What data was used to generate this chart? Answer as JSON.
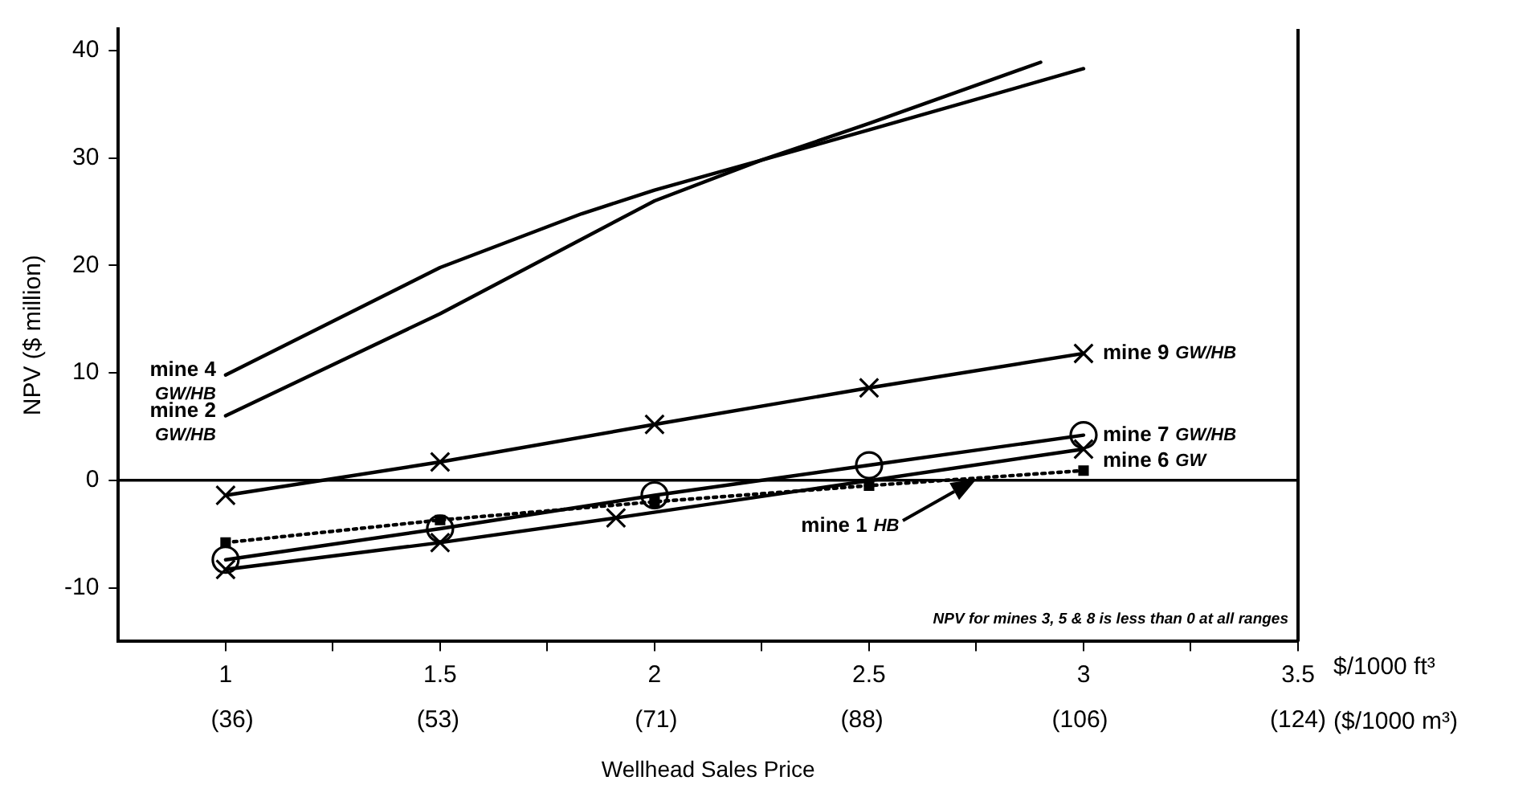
{
  "chart_data": {
    "type": "line",
    "xlabel": "Wellhead Sales Price",
    "ylabel": "NPV ($ million)",
    "xlim": [
      0.75,
      3.5
    ],
    "xticks": [
      1,
      {
        "value": 1.25,
        "label": null
      },
      1.5,
      {
        "value": 1.75,
        "label": null
      },
      2,
      {
        "value": 2.25,
        "label": null
      },
      2.5,
      {
        "value": 2.75,
        "label": null
      },
      3,
      {
        "value": 3.25,
        "label": null
      },
      3.5
    ],
    "x2lim": [
      26.6,
      124
    ],
    "x2ticks": [
      {
        "value": 36,
        "label": "(36)"
      },
      {
        "value": 53,
        "label": "(53)"
      },
      {
        "value": 71,
        "label": "(71)"
      },
      {
        "value": 88,
        "label": "(88)"
      },
      {
        "value": 106,
        "label": "(106)"
      },
      {
        "value": 124,
        "label": "(124)"
      }
    ],
    "ylim": [
      -15,
      42
    ],
    "yticks": [
      -10,
      0,
      10,
      20,
      30,
      40
    ],
    "grid": false,
    "legend": false,
    "series": [
      {
        "name": "mine 4 GW/HB",
        "color": "#000000",
        "marker": "none",
        "x": [
          1,
          1.5,
          1.83,
          2,
          2.5,
          3
        ],
        "values": [
          9.8,
          19.8,
          24.8,
          27,
          32.6,
          38.3
        ]
      },
      {
        "name": "mine 2 GW/HB",
        "color": "#000000",
        "marker": "none",
        "x": [
          1,
          1.5,
          2,
          2.25,
          2.5,
          2.9
        ],
        "values": [
          6.0,
          15.5,
          26,
          29.8,
          33.2,
          38.9
        ]
      },
      {
        "name": "mine 9 GW/HB",
        "color": "#000000",
        "marker": "cross",
        "x": [
          1,
          1.5,
          2,
          2.5,
          3
        ],
        "values": [
          -1.4,
          1.7,
          5.2,
          8.6,
          11.8
        ]
      },
      {
        "name": "mine 7 GW/HB",
        "color": "#000000",
        "marker": "circle",
        "x": [
          1,
          1.5,
          2,
          2.5,
          3
        ],
        "values": [
          -7.4,
          -4.5,
          -1.4,
          1.4,
          4.2
        ]
      },
      {
        "name": "mine 6 GW",
        "color": "#000000",
        "marker": "cross",
        "x": [
          1,
          1.5,
          1.91,
          3
        ],
        "values": [
          -8.3,
          -5.8,
          -3.5,
          2.9
        ]
      },
      {
        "color": "#000000",
        "marker": "square",
        "line_style": "dotted",
        "x": [
          1,
          1.5,
          2,
          2.5,
          3
        ],
        "values": [
          -5.8,
          -3.7,
          -2.0,
          -0.5,
          0.9
        ]
      }
    ],
    "ref_lines": [
      {
        "axis": "y",
        "value": 0,
        "color": "#000000"
      }
    ],
    "annotations": [
      "$/1000 ft³",
      "($/1000 m³)",
      "NPV for mines 3, 5 & 8 is less than 0 at all ranges",
      "mine 1 HB"
    ]
  }
}
